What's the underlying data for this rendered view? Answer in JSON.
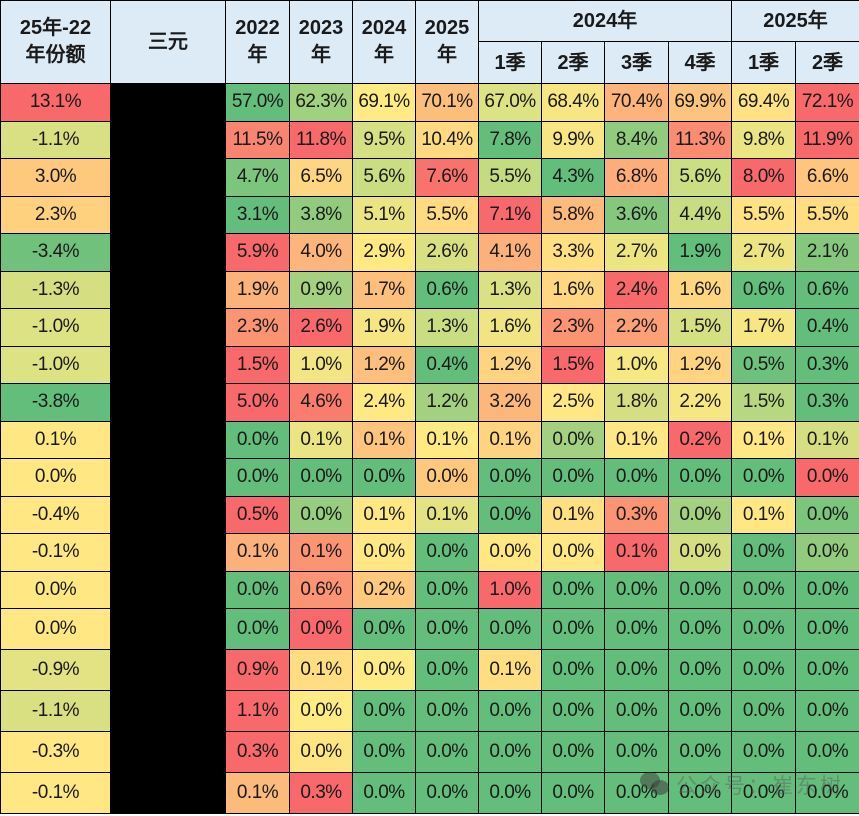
{
  "headers": {
    "col_change": "25年-22\n年份额",
    "col_change_line1": "25年-22",
    "col_change_line2": "年份额",
    "col_name": "三元",
    "years": [
      {
        "line1": "2022",
        "line2": "年"
      },
      {
        "line1": "2023",
        "line2": "年"
      },
      {
        "line1": "2024",
        "line2": "年"
      },
      {
        "line1": "2025",
        "line2": "年"
      }
    ],
    "group_2024": "2024年",
    "group_2025": "2025年",
    "quarters": [
      "1季",
      "2季",
      "3季",
      "4季",
      "1季",
      "2季"
    ]
  },
  "colors": {
    "header_bg": "#ddebf7",
    "red": "#f8696b",
    "green": "#63be7b",
    "yellow": "#ffeb84",
    "redacted": "#000000"
  },
  "rows": [
    {
      "change": {
        "v": "13.1%",
        "c": "#f8696b"
      },
      "cells": [
        {
          "v": "57.0%",
          "c": "#63be7b"
        },
        {
          "v": "62.3%",
          "c": "#a0d17f"
        },
        {
          "v": "69.1%",
          "c": "#ffeb84"
        },
        {
          "v": "70.1%",
          "c": "#fcbf7b"
        },
        {
          "v": "67.0%",
          "c": "#dde283"
        },
        {
          "v": "68.4%",
          "c": "#f8e683"
        },
        {
          "v": "70.4%",
          "c": "#fcb47a"
        },
        {
          "v": "69.9%",
          "c": "#fdc47d"
        },
        {
          "v": "69.4%",
          "c": "#fee283"
        },
        {
          "v": "72.1%",
          "c": "#f8696b"
        }
      ]
    },
    {
      "change": {
        "v": "-1.1%",
        "c": "#d9e081"
      },
      "cells": [
        {
          "v": "11.5%",
          "c": "#f98470"
        },
        {
          "v": "11.8%",
          "c": "#f8696b"
        },
        {
          "v": "9.5%",
          "c": "#d4e081"
        },
        {
          "v": "10.4%",
          "c": "#ffda80"
        },
        {
          "v": "7.8%",
          "c": "#63be7b"
        },
        {
          "v": "9.9%",
          "c": "#f7e683"
        },
        {
          "v": "8.4%",
          "c": "#90cb7e"
        },
        {
          "v": "11.3%",
          "c": "#fa8c72"
        },
        {
          "v": "9.8%",
          "c": "#ebe482"
        },
        {
          "v": "11.9%",
          "c": "#f8696b"
        }
      ]
    },
    {
      "change": {
        "v": "3.0%",
        "c": "#fec97d"
      },
      "cells": [
        {
          "v": "4.7%",
          "c": "#7cc57d"
        },
        {
          "v": "6.5%",
          "c": "#fed580"
        },
        {
          "v": "5.6%",
          "c": "#cadd80"
        },
        {
          "v": "7.6%",
          "c": "#f8736d"
        },
        {
          "v": "5.5%",
          "c": "#c4dc80"
        },
        {
          "v": "4.3%",
          "c": "#63be7b"
        },
        {
          "v": "6.8%",
          "c": "#fcad79"
        },
        {
          "v": "5.6%",
          "c": "#cbde81"
        },
        {
          "v": "8.0%",
          "c": "#f8696b"
        },
        {
          "v": "6.6%",
          "c": "#fec57d"
        }
      ]
    },
    {
      "change": {
        "v": "2.3%",
        "c": "#fed17f"
      },
      "cells": [
        {
          "v": "3.1%",
          "c": "#63be7b"
        },
        {
          "v": "3.8%",
          "c": "#93cb7e"
        },
        {
          "v": "5.1%",
          "c": "#eae482"
        },
        {
          "v": "5.5%",
          "c": "#ffda80"
        },
        {
          "v": "7.1%",
          "c": "#f8696b"
        },
        {
          "v": "5.8%",
          "c": "#fcbb7b"
        },
        {
          "v": "3.6%",
          "c": "#85c77d"
        },
        {
          "v": "4.4%",
          "c": "#c8dd81"
        },
        {
          "v": "5.5%",
          "c": "#fee283"
        },
        {
          "v": "5.5%",
          "c": "#fede81"
        }
      ]
    },
    {
      "change": {
        "v": "-3.4%",
        "c": "#70c17c"
      },
      "cells": [
        {
          "v": "5.9%",
          "c": "#f8696b"
        },
        {
          "v": "4.0%",
          "c": "#fcb57a"
        },
        {
          "v": "2.9%",
          "c": "#ffe983"
        },
        {
          "v": "2.6%",
          "c": "#d8e182"
        },
        {
          "v": "4.1%",
          "c": "#fcb17a"
        },
        {
          "v": "3.3%",
          "c": "#fee082"
        },
        {
          "v": "2.7%",
          "c": "#ece582"
        },
        {
          "v": "1.9%",
          "c": "#63be7b"
        },
        {
          "v": "2.7%",
          "c": "#ece582"
        },
        {
          "v": "2.1%",
          "c": "#84c77d"
        }
      ]
    },
    {
      "change": {
        "v": "-1.3%",
        "c": "#d5df81"
      },
      "cells": [
        {
          "v": "1.9%",
          "c": "#fcb37a"
        },
        {
          "v": "0.9%",
          "c": "#a3d17f"
        },
        {
          "v": "1.7%",
          "c": "#fdbf7c"
        },
        {
          "v": "0.6%",
          "c": "#63be7b"
        },
        {
          "v": "1.3%",
          "c": "#dbe182"
        },
        {
          "v": "1.6%",
          "c": "#fed780"
        },
        {
          "v": "2.4%",
          "c": "#f8696b"
        },
        {
          "v": "1.6%",
          "c": "#fed680"
        },
        {
          "v": "0.6%",
          "c": "#63be7b"
        },
        {
          "v": "0.6%",
          "c": "#63be7b"
        }
      ]
    },
    {
      "change": {
        "v": "-1.0%",
        "c": "#dde283"
      },
      "cells": [
        {
          "v": "2.3%",
          "c": "#fa9473"
        },
        {
          "v": "2.6%",
          "c": "#f8696b"
        },
        {
          "v": "1.9%",
          "c": "#f6e683"
        },
        {
          "v": "1.3%",
          "c": "#cadd80"
        },
        {
          "v": "1.6%",
          "c": "#f0e582"
        },
        {
          "v": "2.3%",
          "c": "#fa9473"
        },
        {
          "v": "2.2%",
          "c": "#fca077"
        },
        {
          "v": "1.5%",
          "c": "#d5e082"
        },
        {
          "v": "1.7%",
          "c": "#f6e783"
        },
        {
          "v": "0.4%",
          "c": "#63be7b"
        }
      ]
    },
    {
      "change": {
        "v": "-1.0%",
        "c": "#dde283"
      },
      "cells": [
        {
          "v": "1.5%",
          "c": "#f8696b"
        },
        {
          "v": "1.0%",
          "c": "#f1e683"
        },
        {
          "v": "1.2%",
          "c": "#fdbf7c"
        },
        {
          "v": "0.4%",
          "c": "#63be7b"
        },
        {
          "v": "1.2%",
          "c": "#fed480"
        },
        {
          "v": "1.5%",
          "c": "#f8696b"
        },
        {
          "v": "1.0%",
          "c": "#f6e883"
        },
        {
          "v": "1.2%",
          "c": "#fed480"
        },
        {
          "v": "0.5%",
          "c": "#6ec17c"
        },
        {
          "v": "0.3%",
          "c": "#63be7b"
        }
      ]
    },
    {
      "change": {
        "v": "-3.8%",
        "c": "#63be7b"
      },
      "cells": [
        {
          "v": "5.0%",
          "c": "#f8696b"
        },
        {
          "v": "4.6%",
          "c": "#f97c6f"
        },
        {
          "v": "2.4%",
          "c": "#ffe983"
        },
        {
          "v": "1.2%",
          "c": "#a3d17f"
        },
        {
          "v": "3.2%",
          "c": "#fcb77a"
        },
        {
          "v": "2.5%",
          "c": "#ffe884"
        },
        {
          "v": "1.8%",
          "c": "#d5df81"
        },
        {
          "v": "2.2%",
          "c": "#f6e783"
        },
        {
          "v": "1.5%",
          "c": "#b7d780"
        },
        {
          "v": "0.3%",
          "c": "#63be7b"
        }
      ]
    },
    {
      "change": {
        "v": "0.1%",
        "c": "#ffe884"
      },
      "cells": [
        {
          "v": "0.0%",
          "c": "#63be7b"
        },
        {
          "v": "0.1%",
          "c": "#ebe482"
        },
        {
          "v": "0.1%",
          "c": "#fdc47d"
        },
        {
          "v": "0.1%",
          "c": "#feea83"
        },
        {
          "v": "0.1%",
          "c": "#fed480"
        },
        {
          "v": "0.0%",
          "c": "#a3d17f"
        },
        {
          "v": "0.1%",
          "c": "#ffe884"
        },
        {
          "v": "0.2%",
          "c": "#f8696b"
        },
        {
          "v": "0.1%",
          "c": "#ffe884"
        },
        {
          "v": "0.1%",
          "c": "#d5df81"
        }
      ]
    },
    {
      "change": {
        "v": "0.0%",
        "c": "#ffe884"
      },
      "cells": [
        {
          "v": "0.0%",
          "c": "#63be7b"
        },
        {
          "v": "0.0%",
          "c": "#63be7b"
        },
        {
          "v": "0.0%",
          "c": "#63be7b"
        },
        {
          "v": "0.0%",
          "c": "#fec97d"
        },
        {
          "v": "0.0%",
          "c": "#63be7b"
        },
        {
          "v": "0.0%",
          "c": "#63be7b"
        },
        {
          "v": "0.0%",
          "c": "#63be7b"
        },
        {
          "v": "0.0%",
          "c": "#63be7b"
        },
        {
          "v": "0.0%",
          "c": "#63be7b"
        },
        {
          "v": "0.0%",
          "c": "#f8696b"
        }
      ]
    },
    {
      "change": {
        "v": "-0.4%",
        "c": "#ffe884"
      },
      "cells": [
        {
          "v": "0.5%",
          "c": "#f8696b"
        },
        {
          "v": "0.0%",
          "c": "#97cd7e"
        },
        {
          "v": "0.1%",
          "c": "#ffe884"
        },
        {
          "v": "0.1%",
          "c": "#e3e383"
        },
        {
          "v": "0.0%",
          "c": "#63be7b"
        },
        {
          "v": "0.1%",
          "c": "#fee082"
        },
        {
          "v": "0.3%",
          "c": "#fa9473"
        },
        {
          "v": "0.0%",
          "c": "#a3d17f"
        },
        {
          "v": "0.1%",
          "c": "#ffe884"
        },
        {
          "v": "0.0%",
          "c": "#7cc57d"
        }
      ]
    },
    {
      "change": {
        "v": "-0.1%",
        "c": "#ffe884"
      },
      "cells": [
        {
          "v": "0.1%",
          "c": "#fcb17a"
        },
        {
          "v": "0.1%",
          "c": "#fa9473"
        },
        {
          "v": "0.0%",
          "c": "#ffe884"
        },
        {
          "v": "0.0%",
          "c": "#63be7b"
        },
        {
          "v": "0.0%",
          "c": "#ffe884"
        },
        {
          "v": "0.0%",
          "c": "#ffe884"
        },
        {
          "v": "0.1%",
          "c": "#f8696b"
        },
        {
          "v": "0.0%",
          "c": "#d5df81"
        },
        {
          "v": "0.0%",
          "c": "#63be7b"
        },
        {
          "v": "0.0%",
          "c": "#93cb7e"
        }
      ]
    },
    {
      "change": {
        "v": "0.0%",
        "c": "#ffe884"
      },
      "cells": [
        {
          "v": "0.0%",
          "c": "#63be7b"
        },
        {
          "v": "0.6%",
          "c": "#fa9473"
        },
        {
          "v": "0.2%",
          "c": "#fec97d"
        },
        {
          "v": "0.0%",
          "c": "#63be7b"
        },
        {
          "v": "1.0%",
          "c": "#f8696b"
        },
        {
          "v": "0.0%",
          "c": "#63be7b"
        },
        {
          "v": "0.0%",
          "c": "#63be7b"
        },
        {
          "v": "0.0%",
          "c": "#63be7b"
        },
        {
          "v": "0.0%",
          "c": "#63be7b"
        },
        {
          "v": "0.0%",
          "c": "#63be7b"
        }
      ]
    },
    {
      "change": {
        "v": "0.0%",
        "c": "#ffe884"
      },
      "cells": [
        {
          "v": "0.0%",
          "c": "#63be7b"
        },
        {
          "v": "0.0%",
          "c": "#f8696b"
        },
        {
          "v": "0.0%",
          "c": "#63be7b"
        },
        {
          "v": "0.0%",
          "c": "#63be7b"
        },
        {
          "v": "0.0%",
          "c": "#63be7b"
        },
        {
          "v": "0.0%",
          "c": "#63be7b"
        },
        {
          "v": "0.0%",
          "c": "#63be7b"
        },
        {
          "v": "0.0%",
          "c": "#63be7b"
        },
        {
          "v": "0.0%",
          "c": "#63be7b"
        },
        {
          "v": "0.0%",
          "c": "#63be7b"
        }
      ]
    },
    {
      "change": {
        "v": "-0.9%",
        "c": "#e3e383"
      },
      "cells": [
        {
          "v": "0.9%",
          "c": "#f8696b"
        },
        {
          "v": "0.1%",
          "c": "#fede81"
        },
        {
          "v": "0.0%",
          "c": "#ffeb84"
        },
        {
          "v": "0.0%",
          "c": "#63be7b"
        },
        {
          "v": "0.1%",
          "c": "#fede81"
        },
        {
          "v": "0.0%",
          "c": "#63be7b"
        },
        {
          "v": "0.0%",
          "c": "#63be7b"
        },
        {
          "v": "0.0%",
          "c": "#63be7b"
        },
        {
          "v": "0.0%",
          "c": "#63be7b"
        },
        {
          "v": "0.0%",
          "c": "#63be7b"
        }
      ]
    },
    {
      "change": {
        "v": "-1.1%",
        "c": "#d9e081"
      },
      "cells": [
        {
          "v": "1.1%",
          "c": "#f8696b"
        },
        {
          "v": "0.0%",
          "c": "#ffeb84"
        },
        {
          "v": "0.0%",
          "c": "#63be7b"
        },
        {
          "v": "0.0%",
          "c": "#63be7b"
        },
        {
          "v": "0.0%",
          "c": "#63be7b"
        },
        {
          "v": "0.0%",
          "c": "#63be7b"
        },
        {
          "v": "0.0%",
          "c": "#63be7b"
        },
        {
          "v": "0.0%",
          "c": "#63be7b"
        },
        {
          "v": "0.0%",
          "c": "#63be7b"
        },
        {
          "v": "0.0%",
          "c": "#63be7b"
        }
      ]
    },
    {
      "change": {
        "v": "-0.3%",
        "c": "#ffe884"
      },
      "cells": [
        {
          "v": "0.3%",
          "c": "#f8696b"
        },
        {
          "v": "0.0%",
          "c": "#fee583"
        },
        {
          "v": "0.0%",
          "c": "#63be7b"
        },
        {
          "v": "0.0%",
          "c": "#63be7b"
        },
        {
          "v": "0.0%",
          "c": "#63be7b"
        },
        {
          "v": "0.0%",
          "c": "#63be7b"
        },
        {
          "v": "0.0%",
          "c": "#63be7b"
        },
        {
          "v": "0.0%",
          "c": "#63be7b"
        },
        {
          "v": "0.0%",
          "c": "#63be7b"
        },
        {
          "v": "0.0%",
          "c": "#63be7b"
        }
      ]
    },
    {
      "change": {
        "v": "-0.1%",
        "c": "#ffe884"
      },
      "cells": [
        {
          "v": "0.1%",
          "c": "#fcbb7b"
        },
        {
          "v": "0.3%",
          "c": "#f8696b"
        },
        {
          "v": "0.0%",
          "c": "#63be7b"
        },
        {
          "v": "0.0%",
          "c": "#63be7b"
        },
        {
          "v": "0.0%",
          "c": "#63be7b"
        },
        {
          "v": "0.0%",
          "c": "#63be7b"
        },
        {
          "v": "0.0%",
          "c": "#63be7b"
        },
        {
          "v": "0.0%",
          "c": "#63be7b"
        },
        {
          "v": "0.0%",
          "c": "#63be7b"
        },
        {
          "v": "0.0%",
          "c": "#63be7b"
        }
      ]
    }
  ],
  "watermark": {
    "icon": "wechat-icon",
    "text": "公众号：崔东树"
  }
}
